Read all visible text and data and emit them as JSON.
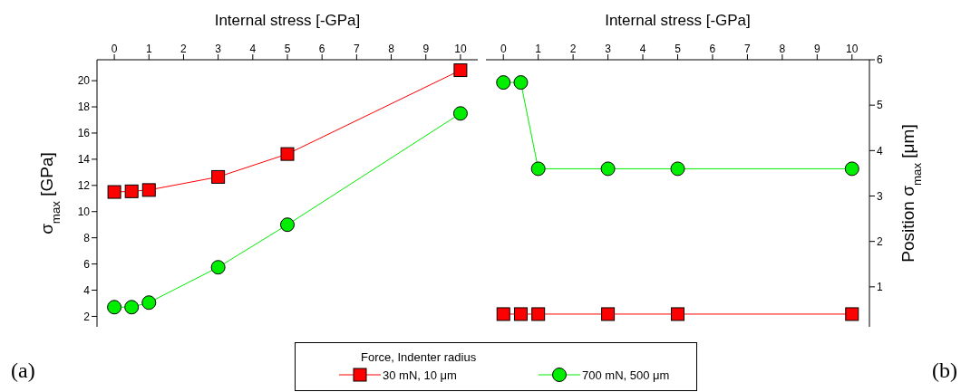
{
  "chart_data": [
    {
      "type": "line",
      "xlabel": "Internal stress [-GPa]",
      "ylabel": "σ$_{max}$ [GPa]",
      "x": [
        0,
        0.5,
        1,
        3,
        5,
        10
      ],
      "xlim": [
        -0.5,
        10.5
      ],
      "xticks": [
        0,
        1,
        2,
        3,
        4,
        5,
        6,
        7,
        8,
        9,
        10
      ],
      "ylim": [
        1.2,
        21.6
      ],
      "yticks": [
        2,
        4,
        6,
        8,
        10,
        12,
        14,
        16,
        18,
        20
      ],
      "legend": "bottom",
      "legend_title": "Force, Indenter radius",
      "annotations": [
        "(a)"
      ],
      "series": [
        {
          "name": "30 mN, 10 μm",
          "color": "#ff0000",
          "marker": "square",
          "values": [
            11.5,
            11.55,
            11.65,
            12.65,
            14.4,
            20.8
          ]
        },
        {
          "name": "700 mN, 500 μm",
          "color": "#00ee00",
          "marker": "circle",
          "values": [
            2.7,
            2.7,
            3.05,
            5.75,
            9.0,
            17.5
          ]
        }
      ]
    },
    {
      "type": "line",
      "xlabel": "Internal stress [-GPa]",
      "ylabel": "Position σ$_{max}$ [μm]",
      "x": [
        0,
        0.5,
        1,
        3,
        5,
        10
      ],
      "xlim": [
        -0.5,
        10.5
      ],
      "xticks": [
        0,
        1,
        2,
        3,
        4,
        5,
        6,
        7,
        8,
        9,
        10
      ],
      "ylim": [
        0.12,
        6
      ],
      "yticks": [
        1,
        2,
        3,
        4,
        5,
        6
      ],
      "annotations": [
        "(b)"
      ],
      "series": [
        {
          "color": "#ff0000",
          "marker": "square",
          "values": [
            0.4,
            0.4,
            0.4,
            0.4,
            0.4,
            0.4
          ]
        },
        {
          "color": "#00ee00",
          "marker": "circle",
          "values": [
            5.5,
            5.5,
            3.6,
            3.6,
            3.6,
            3.6
          ]
        }
      ]
    }
  ]
}
